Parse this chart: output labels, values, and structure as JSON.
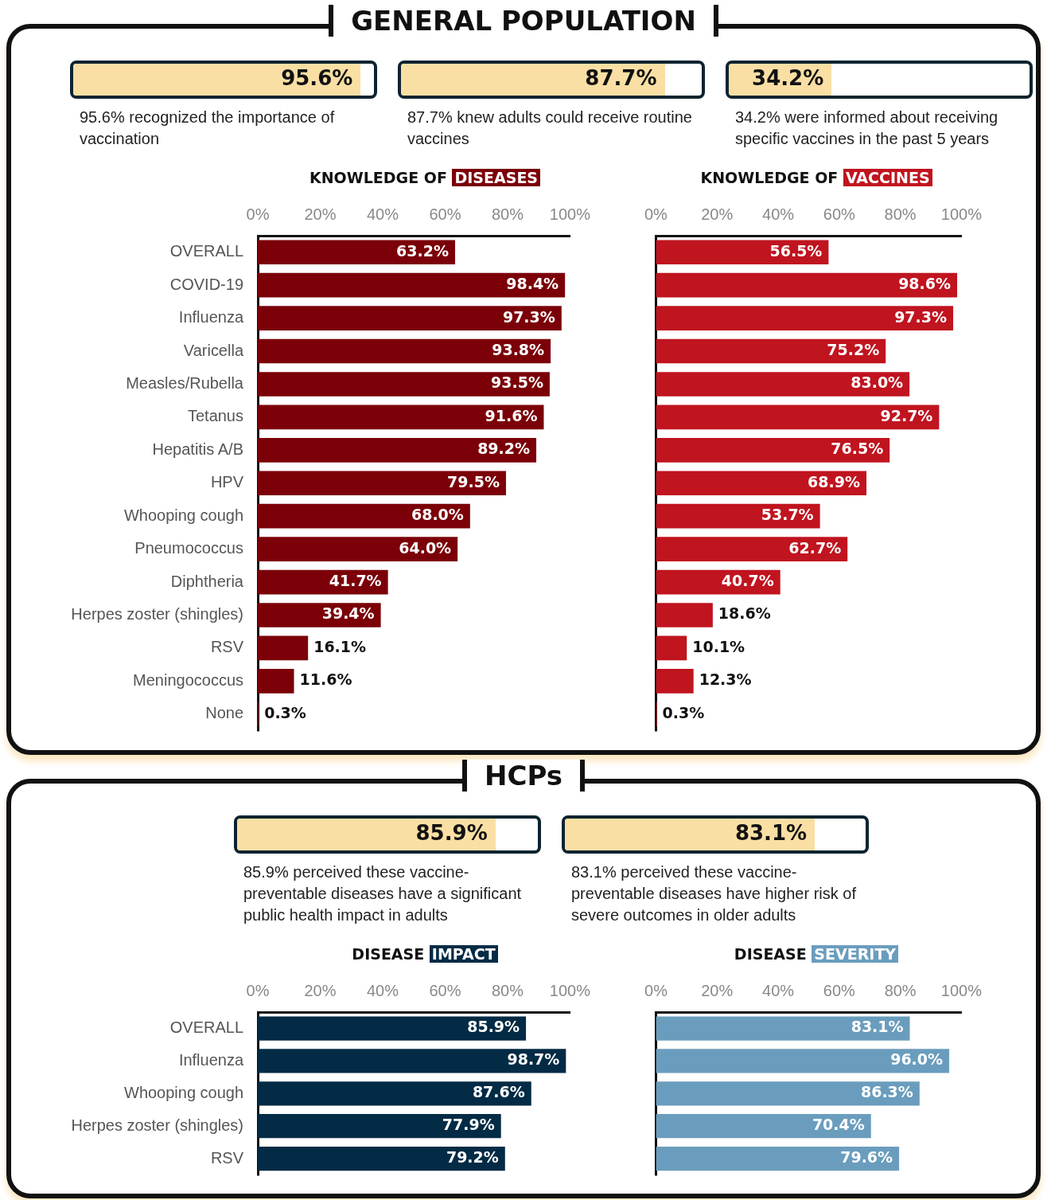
{
  "chart_data": [
    {
      "type": "other",
      "title": "GENERAL POPULATION"
    },
    {
      "type": "other",
      "values": [
        95.6
      ],
      "value_labels": [
        "95.6%"
      ],
      "color": "#f9dfa4",
      "annotations": [
        "95.6% recognized the importance of vaccination"
      ]
    },
    {
      "type": "other",
      "values": [
        87.7
      ],
      "value_labels": [
        "87.7%"
      ],
      "color": "#f9dfa4",
      "annotations": [
        "87.7% knew adults could receive routine vaccines"
      ]
    },
    {
      "type": "other",
      "values": [
        34.2
      ],
      "value_labels": [
        "34.2%"
      ],
      "color": "#f9dfa4",
      "annotations": [
        "34.2% were informed about receiving specific vaccines in the past 5 years"
      ]
    },
    {
      "type": "bar",
      "orientation": "horizontal",
      "title": "KNOWLEDGE OF DISEASES",
      "categories": [
        "OVERALL",
        "COVID-19",
        "Influenza",
        "Varicella",
        "Measles/Rubella",
        "Tetanus",
        "Hepatitis A/B",
        "HPV",
        "Whooping cough",
        "Pneumococcus",
        "Diphtheria",
        "Herpes zoster (shingles)",
        "RSV",
        "Meningococcus",
        "None"
      ],
      "values": [
        63.2,
        98.4,
        97.3,
        93.8,
        93.5,
        91.6,
        89.2,
        79.5,
        68.0,
        64.0,
        41.7,
        39.4,
        16.1,
        11.6,
        0.3
      ],
      "value_labels": [
        "63.2%",
        "98.4%",
        "97.3%",
        "93.8%",
        "93.5%",
        "91.6%",
        "89.2%",
        "79.5%",
        "68.0%",
        "64.0%",
        "41.7%",
        "39.4%",
        "16.1%",
        "11.6%",
        "0.3%"
      ],
      "color": "#7b0008",
      "xlim": [
        0,
        100
      ],
      "xticks": [
        {
          "value": 0,
          "label": "0%"
        },
        {
          "value": 20,
          "label": "20%"
        },
        {
          "value": 40,
          "label": "40%"
        },
        {
          "value": 60,
          "label": "60%"
        },
        {
          "value": 80,
          "label": "80%"
        },
        {
          "value": 100,
          "label": "100%"
        }
      ]
    },
    {
      "type": "bar",
      "orientation": "horizontal",
      "title": "KNOWLEDGE OF VACCINES",
      "categories": [
        null,
        null,
        null,
        null,
        null,
        null,
        null,
        null,
        null,
        null,
        null,
        null,
        null,
        null,
        null
      ],
      "values": [
        56.5,
        98.6,
        97.3,
        75.2,
        83.0,
        92.7,
        76.5,
        68.9,
        53.7,
        62.7,
        40.7,
        18.6,
        10.1,
        12.3,
        0.3
      ],
      "value_labels": [
        "56.5%",
        "98.6%",
        "97.3%",
        "75.2%",
        "83.0%",
        "92.7%",
        "76.5%",
        "68.9%",
        "53.7%",
        "62.7%",
        "40.7%",
        "18.6%",
        "10.1%",
        "12.3%",
        "0.3%"
      ],
      "color": "#c0141f",
      "xlim": [
        0,
        100
      ],
      "xticks": [
        {
          "value": 0,
          "label": "0%"
        },
        {
          "value": 20,
          "label": "20%"
        },
        {
          "value": 40,
          "label": "40%"
        },
        {
          "value": 60,
          "label": "60%"
        },
        {
          "value": 80,
          "label": "80%"
        },
        {
          "value": 100,
          "label": "100%"
        }
      ],
      "tick_labels": "x"
    },
    {
      "type": "other",
      "title": "HCPs"
    },
    {
      "type": "other",
      "values": [
        85.9
      ],
      "value_labels": [
        "85.9%"
      ],
      "color": "#f9dfa4",
      "annotations": [
        "85.9% perceived these vaccine-preventable diseases have a significant public health impact in adults"
      ]
    },
    {
      "type": "other",
      "values": [
        83.1
      ],
      "value_labels": [
        "83.1%"
      ],
      "color": "#f9dfa4",
      "annotations": [
        "83.1% perceived these vaccine-preventable diseases have higher risk of severe outcomes in older adults"
      ]
    },
    {
      "type": "bar",
      "orientation": "horizontal",
      "title": "DISEASE IMPACT",
      "categories": [
        "OVERALL",
        "Influenza",
        "Whooping cough",
        "Herpes zoster (shingles)",
        "RSV"
      ],
      "values": [
        85.9,
        98.7,
        87.6,
        77.9,
        79.2
      ],
      "value_labels": [
        "85.9%",
        "98.7%",
        "87.6%",
        "77.9%",
        "79.2%"
      ],
      "color": "#032b45",
      "xlim": [
        0,
        100
      ],
      "xticks": [
        {
          "value": 0,
          "label": "0%"
        },
        {
          "value": 20,
          "label": "20%"
        },
        {
          "value": 40,
          "label": "40%"
        },
        {
          "value": 60,
          "label": "60%"
        },
        {
          "value": 80,
          "label": "80%"
        },
        {
          "value": 100,
          "label": "100%"
        }
      ]
    },
    {
      "type": "bar",
      "orientation": "horizontal",
      "title": "DISEASE SEVERITY",
      "categories": [
        null,
        null,
        null,
        null,
        null
      ],
      "values": [
        83.1,
        96.0,
        86.3,
        70.4,
        79.6
      ],
      "value_labels": [
        "83.1%",
        "96.0%",
        "86.3%",
        "70.4%",
        "79.6%"
      ],
      "color": "#6a9dbd",
      "xlim": [
        0,
        100
      ],
      "xticks": [
        {
          "value": 0,
          "label": "0%"
        },
        {
          "value": 20,
          "label": "20%"
        },
        {
          "value": 40,
          "label": "40%"
        },
        {
          "value": 60,
          "label": "60%"
        },
        {
          "value": 80,
          "label": "80%"
        },
        {
          "value": 100,
          "label": "100%"
        }
      ],
      "tick_labels": "x"
    }
  ]
}
